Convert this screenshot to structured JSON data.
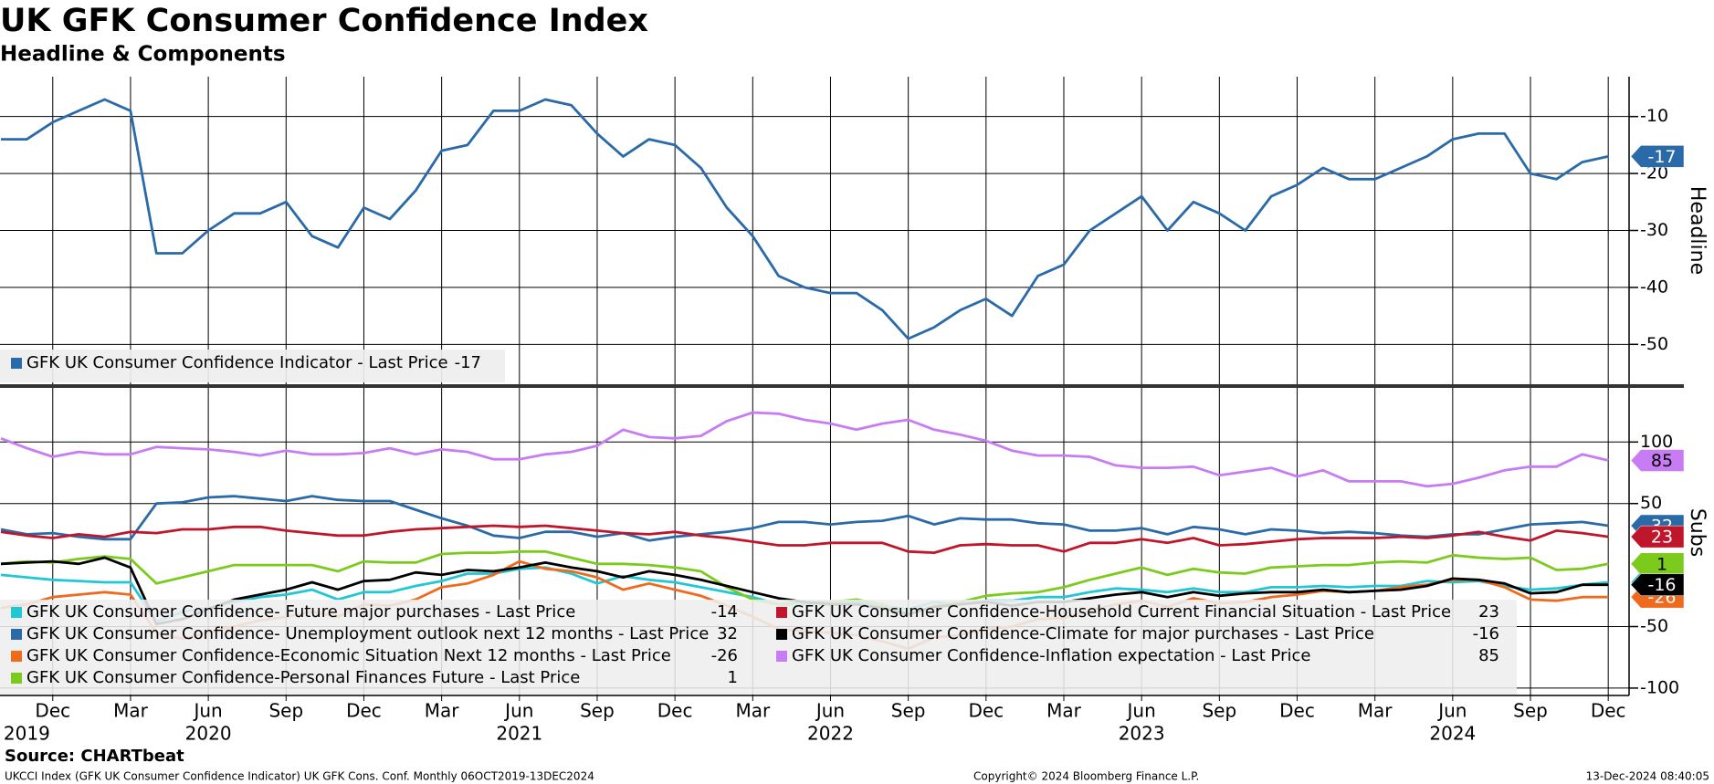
{
  "chart_data": [
    {
      "type": "line",
      "title": "UK GFK Consumer Confidence Index",
      "subtitle": "Headline & Components",
      "y_axis_label": "Headline",
      "x": [
        "2019-10",
        "2019-11",
        "2019-12",
        "2020-01",
        "2020-02",
        "2020-03",
        "2020-04",
        "2020-05",
        "2020-06",
        "2020-07",
        "2020-08",
        "2020-09",
        "2020-10",
        "2020-11",
        "2020-12",
        "2021-01",
        "2021-02",
        "2021-03",
        "2021-04",
        "2021-05",
        "2021-06",
        "2021-07",
        "2021-08",
        "2021-09",
        "2021-10",
        "2021-11",
        "2021-12",
        "2022-01",
        "2022-02",
        "2022-03",
        "2022-04",
        "2022-05",
        "2022-06",
        "2022-07",
        "2022-08",
        "2022-09",
        "2022-10",
        "2022-11",
        "2022-12",
        "2023-01",
        "2023-02",
        "2023-03",
        "2023-04",
        "2023-05",
        "2023-06",
        "2023-07",
        "2023-08",
        "2023-09",
        "2023-10",
        "2023-11",
        "2023-12",
        "2024-01",
        "2024-02",
        "2024-03",
        "2024-04",
        "2024-05",
        "2024-06",
        "2024-07",
        "2024-08",
        "2024-09",
        "2024-10",
        "2024-11",
        "2024-12"
      ],
      "ylim": [
        -57,
        -3
      ],
      "yticks": [
        -10,
        -20,
        -30,
        -40,
        -50
      ],
      "grid": true,
      "legend": "lower-left",
      "legend_suffix": " - Last Price",
      "series": [
        {
          "name": "GFK UK Consumer Confidence Indicator",
          "color": "#2a6aa8",
          "values": [
            -14,
            -14,
            -11,
            -9,
            -7,
            -9,
            -34,
            -34,
            -30,
            -27,
            -27,
            -25,
            -31,
            -33,
            -26,
            -28,
            -23,
            -16,
            -15,
            -9,
            -9,
            -7,
            -8,
            -13,
            -17,
            -14,
            -15,
            -19,
            -26,
            -31,
            -38,
            -40,
            -41,
            -41,
            -44,
            -49,
            -47,
            -44,
            -42,
            -45,
            -38,
            -36,
            -30,
            -27,
            -24,
            -30,
            -25,
            -27,
            -30,
            -24,
            -22,
            -19,
            -21,
            -21,
            -19,
            -17,
            -14,
            -13,
            -13,
            -20,
            -21,
            -18,
            -17
          ]
        }
      ]
    },
    {
      "type": "line",
      "y_axis_label": "Subs",
      "x": [
        "2019-10",
        "2019-11",
        "2019-12",
        "2020-01",
        "2020-02",
        "2020-03",
        "2020-04",
        "2020-05",
        "2020-06",
        "2020-07",
        "2020-08",
        "2020-09",
        "2020-10",
        "2020-11",
        "2020-12",
        "2021-01",
        "2021-02",
        "2021-03",
        "2021-04",
        "2021-05",
        "2021-06",
        "2021-07",
        "2021-08",
        "2021-09",
        "2021-10",
        "2021-11",
        "2021-12",
        "2022-01",
        "2022-02",
        "2022-03",
        "2022-04",
        "2022-05",
        "2022-06",
        "2022-07",
        "2022-08",
        "2022-09",
        "2022-10",
        "2022-11",
        "2022-12",
        "2023-01",
        "2023-02",
        "2023-03",
        "2023-04",
        "2023-05",
        "2023-06",
        "2023-07",
        "2023-08",
        "2023-09",
        "2023-10",
        "2023-11",
        "2023-12",
        "2024-01",
        "2024-02",
        "2024-03",
        "2024-04",
        "2024-05",
        "2024-06",
        "2024-07",
        "2024-08",
        "2024-09",
        "2024-10",
        "2024-11",
        "2024-12"
      ],
      "xticks": [
        {
          "value": "2019-12",
          "label": "Dec"
        },
        {
          "value": "2020-03",
          "label": "Mar"
        },
        {
          "value": "2020-06",
          "label": "Jun"
        },
        {
          "value": "2020-09",
          "label": "Sep"
        },
        {
          "value": "2020-12",
          "label": "Dec"
        },
        {
          "value": "2021-03",
          "label": "Mar"
        },
        {
          "value": "2021-06",
          "label": "Jun"
        },
        {
          "value": "2021-09",
          "label": "Sep"
        },
        {
          "value": "2021-12",
          "label": "Dec"
        },
        {
          "value": "2022-03",
          "label": "Mar"
        },
        {
          "value": "2022-06",
          "label": "Jun"
        },
        {
          "value": "2022-09",
          "label": "Sep"
        },
        {
          "value": "2022-12",
          "label": "Dec"
        },
        {
          "value": "2023-03",
          "label": "Mar"
        },
        {
          "value": "2023-06",
          "label": "Jun"
        },
        {
          "value": "2023-09",
          "label": "Sep"
        },
        {
          "value": "2023-12",
          "label": "Dec"
        },
        {
          "value": "2024-03",
          "label": "Mar"
        },
        {
          "value": "2024-06",
          "label": "Jun"
        },
        {
          "value": "2024-09",
          "label": "Sep"
        },
        {
          "value": "2024-12",
          "label": "Dec"
        }
      ],
      "year_labels": [
        {
          "value": "2019-11",
          "label": "2019"
        },
        {
          "value": "2020-06",
          "label": "2020"
        },
        {
          "value": "2021-06",
          "label": "2021"
        },
        {
          "value": "2022-06",
          "label": "2022"
        },
        {
          "value": "2023-06",
          "label": "2023"
        },
        {
          "value": "2024-06",
          "label": "2024"
        }
      ],
      "ylim": [
        -106,
        144
      ],
      "yticks": [
        100,
        50,
        -50,
        -100
      ],
      "grid": true,
      "legend": "lower-left",
      "legend_suffix": " - Last Price",
      "series": [
        {
          "name": "GFK UK Consumer Confidence- Future major purchases",
          "color": "#22c7d4",
          "values": [
            -8,
            -10,
            -12,
            -13,
            -14,
            -14,
            -46,
            -38,
            -35,
            -30,
            -26,
            -24,
            -20,
            -28,
            -22,
            -22,
            -17,
            -13,
            -7,
            -7,
            -3,
            -2,
            -7,
            -15,
            -9,
            -12,
            -14,
            -18,
            -22,
            -26,
            -32,
            -32,
            -30,
            -30,
            -33,
            -36,
            -30,
            -32,
            -29,
            -29,
            -26,
            -26,
            -22,
            -19,
            -20,
            -22,
            -19,
            -22,
            -22,
            -18,
            -18,
            -17,
            -18,
            -17,
            -17,
            -13,
            -14,
            -13,
            -17,
            -20,
            -19,
            -16,
            -14
          ]
        },
        {
          "name": "GFK UK Consumer Confidence- Unemployment outlook next 12 months",
          "color": "#2a6aa8",
          "values": [
            29,
            25,
            26,
            23,
            21,
            21,
            50,
            51,
            55,
            56,
            54,
            52,
            56,
            53,
            52,
            52,
            45,
            38,
            32,
            24,
            22,
            27,
            27,
            23,
            26,
            20,
            23,
            25,
            27,
            30,
            35,
            35,
            33,
            35,
            36,
            40,
            33,
            38,
            37,
            37,
            34,
            33,
            28,
            28,
            30,
            25,
            31,
            29,
            25,
            29,
            28,
            26,
            27,
            26,
            24,
            23,
            25,
            25,
            29,
            33,
            34,
            35,
            32
          ]
        },
        {
          "name": "GFK UK Consumer Confidence-Economic Situation Next 12 months",
          "color": "#f06a1e",
          "values": [
            -35,
            -32,
            -26,
            -24,
            -22,
            -24,
            -55,
            -60,
            -55,
            -50,
            -45,
            -42,
            -38,
            -42,
            -32,
            -33,
            -28,
            -18,
            -15,
            -8,
            3,
            -3,
            -5,
            -10,
            -20,
            -15,
            -20,
            -25,
            -33,
            -42,
            -52,
            -54,
            -55,
            -57,
            -62,
            -68,
            -59,
            -57,
            -52,
            -50,
            -44,
            -43,
            -37,
            -32,
            -29,
            -34,
            -27,
            -31,
            -30,
            -26,
            -24,
            -21,
            -22,
            -21,
            -18,
            -16,
            -12,
            -12,
            -18,
            -28,
            -29,
            -26,
            -26
          ]
        },
        {
          "name": "GFK UK Consumer Confidence-Personal Finances Future",
          "color": "#7ccb1c",
          "values": [
            1,
            3,
            2,
            5,
            7,
            5,
            -15,
            -10,
            -5,
            0,
            0,
            0,
            0,
            -5,
            3,
            2,
            2,
            9,
            10,
            10,
            11,
            11,
            6,
            1,
            1,
            0,
            -2,
            -5,
            -18,
            -28,
            -32,
            -30,
            -30,
            -28,
            -32,
            -40,
            -33,
            -30,
            -25,
            -23,
            -22,
            -18,
            -12,
            -7,
            -2,
            -8,
            -3,
            -6,
            -7,
            -2,
            -1,
            0,
            0,
            2,
            3,
            2,
            8,
            6,
            5,
            6,
            -4,
            -3,
            1
          ]
        },
        {
          "name": "GFK UK Consumer Confidence-Household Current Financial Situation",
          "color": "#c0162b",
          "values": [
            27,
            24,
            22,
            25,
            23,
            27,
            26,
            29,
            29,
            31,
            31,
            28,
            26,
            24,
            24,
            27,
            29,
            30,
            31,
            32,
            31,
            32,
            30,
            28,
            26,
            25,
            27,
            24,
            22,
            19,
            16,
            16,
            18,
            18,
            18,
            11,
            10,
            16,
            17,
            16,
            16,
            11,
            18,
            18,
            21,
            18,
            22,
            16,
            17,
            19,
            21,
            22,
            22,
            22,
            23,
            22,
            24,
            27,
            23,
            20,
            28,
            26,
            23
          ]
        },
        {
          "name": "GFK UK Consumer Confidence-Climate for major purchases",
          "color": "#000000",
          "values": [
            1,
            2,
            3,
            1,
            6,
            -2,
            -48,
            -44,
            -36,
            -28,
            -24,
            -20,
            -14,
            -20,
            -13,
            -12,
            -6,
            -8,
            -4,
            -5,
            -2,
            2,
            -2,
            -5,
            -10,
            -5,
            -8,
            -12,
            -17,
            -22,
            -27,
            -30,
            -32,
            -32,
            -35,
            -40,
            -34,
            -32,
            -30,
            -33,
            -30,
            -30,
            -27,
            -24,
            -22,
            -26,
            -22,
            -25,
            -23,
            -22,
            -22,
            -20,
            -22,
            -21,
            -20,
            -17,
            -11,
            -12,
            -15,
            -23,
            -22,
            -16,
            -16
          ]
        },
        {
          "name": "GFK UK Consumer Confidence-Inflation expectation",
          "color": "#c77cf4",
          "values": [
            103,
            95,
            88,
            92,
            90,
            90,
            96,
            95,
            94,
            92,
            89,
            93,
            90,
            90,
            91,
            95,
            90,
            94,
            92,
            86,
            86,
            90,
            92,
            97,
            110,
            104,
            103,
            105,
            117,
            124,
            123,
            118,
            115,
            110,
            115,
            118,
            110,
            106,
            101,
            93,
            89,
            89,
            88,
            81,
            79,
            79,
            80,
            73,
            76,
            79,
            72,
            77,
            68,
            68,
            68,
            64,
            66,
            71,
            77,
            80,
            80,
            90,
            85
          ]
        }
      ]
    }
  ],
  "footer": {
    "source": "Source: CHARTbeat",
    "description": "UKCCI Index (GFK UK Consumer Confidence Indicator) UK GFK Cons. Conf.  Monthly 06OCT2019-13DEC2024",
    "copyright": "Copyright© 2024 Bloomberg Finance L.P.",
    "timestamp": "13-Dec-2024 08:40:05"
  }
}
